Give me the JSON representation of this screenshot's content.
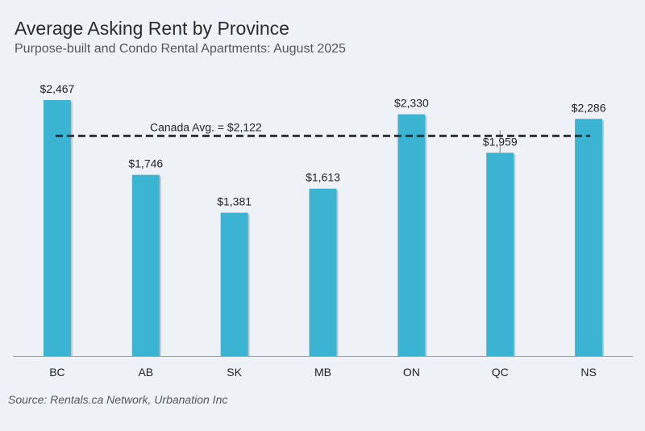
{
  "header": {
    "title": "Average Asking Rent by Province",
    "subtitle": "Purpose-built and Condo Rental Apartments: August 2025"
  },
  "footer": {
    "source": "Source: Rentals.ca Network, Urbanation Inc"
  },
  "colors": {
    "bar": "#3bb4d4",
    "reference_line": "#333333",
    "background": "#eef2f7",
    "axis": "#999999"
  },
  "chart_data": {
    "type": "bar",
    "categories": [
      "BC",
      "AB",
      "SK",
      "MB",
      "ON",
      "QC",
      "NS"
    ],
    "values": [
      2467,
      1746,
      1381,
      1613,
      2330,
      1959,
      2286
    ],
    "data_labels": [
      "$2,467",
      "$1,746",
      "$1,381",
      "$1,613",
      "$2,330",
      "$1,959",
      "$2,286"
    ],
    "ylim": [
      0,
      2467
    ],
    "grid": false,
    "legend": "none",
    "reference_line": {
      "label": "Canada Avg. = $2,122",
      "value": 2122,
      "style": "dashed"
    }
  }
}
